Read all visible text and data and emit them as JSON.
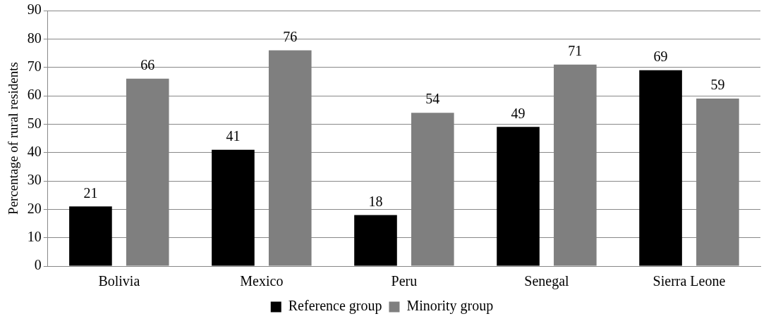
{
  "chart_data": {
    "type": "bar",
    "ylabel": "Percentage of rural residents",
    "categories": [
      "Bolivia",
      "Mexico",
      "Peru",
      "Senegal",
      "Sierra Leone"
    ],
    "series": [
      {
        "name": "Reference group",
        "color": "#000000",
        "values": [
          21,
          41,
          18,
          49,
          69
        ]
      },
      {
        "name": "Minority group",
        "color": "#7f7f7f",
        "values": [
          66,
          76,
          54,
          71,
          59
        ]
      }
    ],
    "ylim": [
      0,
      90
    ],
    "yticks": [
      0,
      10,
      20,
      30,
      40,
      50,
      60,
      70,
      80,
      90
    ],
    "grid": "y",
    "legend": "bottom",
    "data_labels": true
  }
}
